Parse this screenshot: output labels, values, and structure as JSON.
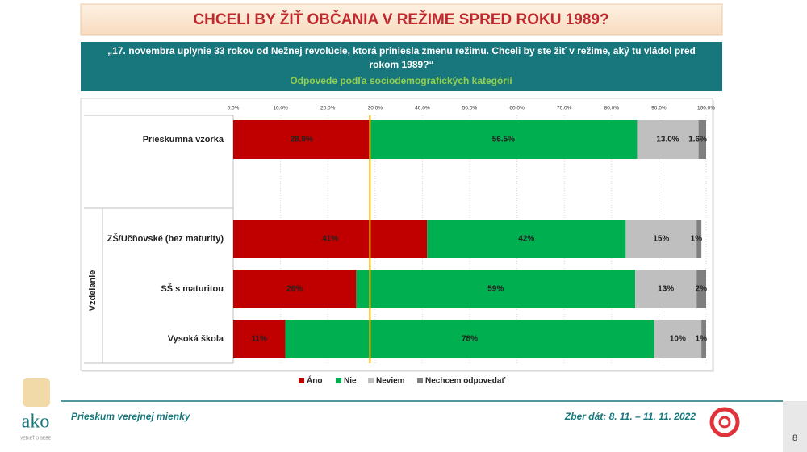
{
  "slide": {
    "title": "CHCELI BY ŽIŤ OBČANIA V REŽIME SPRED ROKU 1989?",
    "question": "„17. novembra uplynie 33 rokov od Nežnej revolúcie, ktorá priniesla zmenu režimu. Chceli by ste žiť v režime, aký tu vládol pred rokom 1989?“",
    "subtitle": "Odpovede podľa sociodemografických kategórií",
    "footer_left": "Prieskum verejnej mienky",
    "footer_right": "Zber dát: 8. 11. – 11. 11. 2022",
    "page_number": "8",
    "logo": "ako",
    "logo_tagline": "VEDIEŤ O SEBE"
  },
  "chart_data": {
    "type": "stacked-barh",
    "categories": [
      "Prieskumná vzorka",
      "ZŠ/Učňovské (bez maturity)",
      "SŠ s maturitou",
      "Vysoká škola"
    ],
    "group_label": "Vzdelanie",
    "series": [
      {
        "name": "Áno",
        "color": "#c00000",
        "values": [
          28.9,
          41,
          26,
          11
        ],
        "value_labels": [
          "28.9%",
          "41%",
          "26%",
          "11%"
        ]
      },
      {
        "name": "Nie",
        "color": "#00b050",
        "values": [
          56.5,
          42,
          59,
          78
        ],
        "value_labels": [
          "56.5%",
          "42%",
          "59%",
          "78%"
        ]
      },
      {
        "name": "Neviem",
        "color": "#bfbfbf",
        "values": [
          13.0,
          15,
          13,
          10
        ],
        "value_labels": [
          "13.0%",
          "15%",
          "13%",
          "10%"
        ]
      },
      {
        "name": "Nechcem odpovedať",
        "color": "#7f7f7f",
        "values": [
          1.6,
          1,
          2,
          1
        ],
        "value_labels": [
          "1.6%",
          "1%",
          "2%",
          "1%"
        ]
      }
    ],
    "reference_line": {
      "value": 28.9,
      "color": "#f0b400"
    },
    "xlim": [
      0,
      100
    ],
    "xticks": [
      {
        "value": 0,
        "label": "0.0%"
      },
      {
        "value": 10,
        "label": "10.0%"
      },
      {
        "value": 20,
        "label": "20.0%"
      },
      {
        "value": 30,
        "label": "30.0%"
      },
      {
        "value": 40,
        "label": "40.0%"
      },
      {
        "value": 50,
        "label": "50.0%"
      },
      {
        "value": 60,
        "label": "60.0%"
      },
      {
        "value": 70,
        "label": "70.0%"
      },
      {
        "value": 80,
        "label": "80.0%"
      },
      {
        "value": 90,
        "label": "90.0%"
      },
      {
        "value": 100,
        "label": "100.0%"
      }
    ],
    "grid": true
  }
}
